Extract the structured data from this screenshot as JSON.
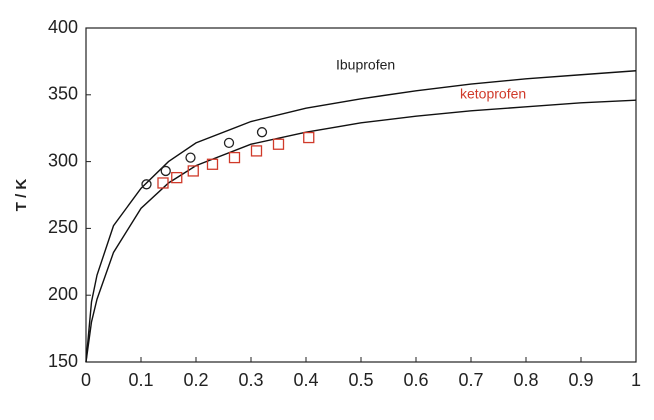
{
  "chart_data": {
    "type": "line",
    "y_label": "T / K",
    "xlim": [
      0,
      1
    ],
    "xticks": [
      0,
      0.1,
      0.2,
      0.3,
      0.4,
      0.5,
      0.6,
      0.7,
      0.8,
      0.9,
      1
    ],
    "ylim": [
      150,
      400
    ],
    "yticks": [
      150,
      200,
      250,
      300,
      350,
      400
    ],
    "grid": false,
    "annotations": [
      {
        "text": "Ibuprofen",
        "color": "#222222"
      },
      {
        "text": "ketoprofen",
        "color": "#d03a2a"
      }
    ],
    "series": [
      {
        "color": "#111111",
        "marker": "none",
        "x": [
          0,
          0.01,
          0.02,
          0.05,
          0.1,
          0.15,
          0.2,
          0.3,
          0.4,
          0.5,
          0.6,
          0.7,
          0.8,
          0.9,
          1
        ],
        "values": [
          150,
          195,
          215,
          252,
          280,
          300,
          314,
          330,
          340,
          347,
          353,
          358,
          362,
          365,
          368
        ]
      },
      {
        "color": "#111111",
        "marker": "none",
        "x": [
          0,
          0.01,
          0.02,
          0.05,
          0.1,
          0.15,
          0.2,
          0.3,
          0.4,
          0.5,
          0.6,
          0.7,
          0.8,
          0.9,
          1
        ],
        "values": [
          150,
          180,
          197,
          232,
          265,
          284,
          297,
          313,
          322,
          329,
          334,
          338,
          341,
          344,
          346
        ]
      },
      {
        "color": "#222222",
        "marker": "circle",
        "x": [
          0.11,
          0.145,
          0.19,
          0.26,
          0.32
        ],
        "values": [
          283,
          293,
          303,
          314,
          322
        ]
      },
      {
        "color": "#d03a2a",
        "marker": "square",
        "x": [
          0.14,
          0.165,
          0.195,
          0.23,
          0.27,
          0.31,
          0.35,
          0.405
        ],
        "values": [
          284,
          288,
          293,
          298,
          303,
          308,
          313,
          318
        ]
      }
    ]
  }
}
